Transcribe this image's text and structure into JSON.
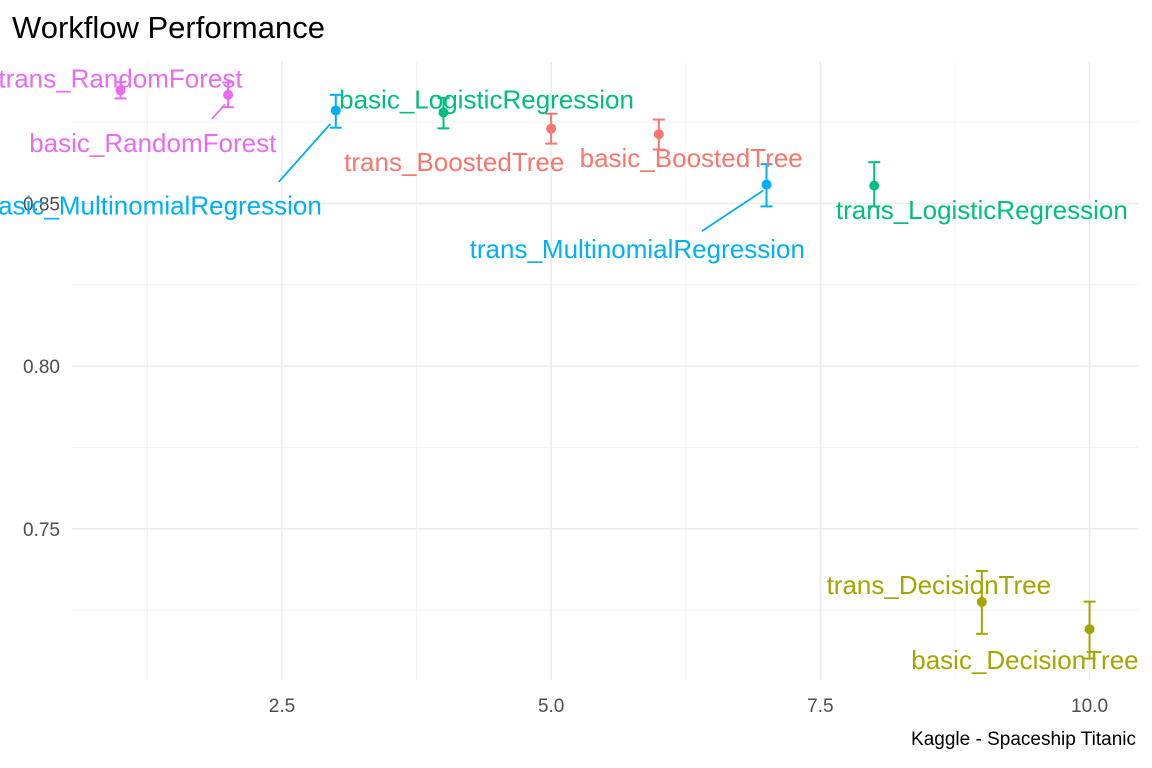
{
  "chart_data": {
    "type": "scatter",
    "title": "Workflow Performance",
    "caption": "Kaggle - Spaceship Titanic",
    "xlabel": "",
    "ylabel": "",
    "xlim": [
      0.55,
      10.45
    ],
    "ylim": [
      0.7035,
      0.8935
    ],
    "x_ticks": [
      {
        "value": 2.5,
        "label": "2.5"
      },
      {
        "value": 5.0,
        "label": "5.0"
      },
      {
        "value": 7.5,
        "label": "7.5"
      },
      {
        "value": 10.0,
        "label": "10.0"
      }
    ],
    "y_ticks": [
      {
        "value": 0.75,
        "label": "0.75"
      },
      {
        "value": 0.8,
        "label": "0.80"
      },
      {
        "value": 0.85,
        "label": "0.85"
      }
    ],
    "x_minor": [
      1.25,
      3.75,
      6.25,
      8.75
    ],
    "y_minor": [
      0.725,
      0.775,
      0.825,
      0.875
    ],
    "grid": true,
    "legend": "none",
    "colors": {
      "RandomForest": "#E76BF3",
      "MultinomialRegression": "#00B0F6",
      "LogisticRegression": "#00BF7D",
      "BoostedTree": "#F8766D",
      "DecisionTree": "#A3A500"
    },
    "points": [
      {
        "label": "trans_RandomForest",
        "model": "RandomForest",
        "x": 1,
        "y": 0.8848,
        "lo": 0.8823,
        "hi": 0.8873,
        "lx": 1.0,
        "ly": 0.8885
      },
      {
        "label": "basic_RandomForest",
        "model": "RandomForest",
        "x": 2,
        "y": 0.8834,
        "lo": 0.8796,
        "hi": 0.8872,
        "lx": 1.3,
        "ly": 0.8686
      },
      {
        "label": "basic_MultinomialRegression",
        "model": "MultinomialRegression",
        "x": 3,
        "y": 0.8786,
        "lo": 0.8733,
        "hi": 0.8834,
        "lx": 1.3,
        "ly": 0.8494
      },
      {
        "label": "basic_LogisticRegression",
        "model": "LogisticRegression",
        "x": 4,
        "y": 0.878,
        "lo": 0.8731,
        "hi": 0.8824,
        "lx": 4.4,
        "ly": 0.882
      },
      {
        "label": "trans_BoostedTree",
        "model": "BoostedTree",
        "x": 5,
        "y": 0.873,
        "lo": 0.8684,
        "hi": 0.8776,
        "lx": 4.1,
        "ly": 0.8627
      },
      {
        "label": "basic_BoostedTree",
        "model": "BoostedTree",
        "x": 6,
        "y": 0.8713,
        "lo": 0.8666,
        "hi": 0.8758,
        "lx": 6.3,
        "ly": 0.864
      },
      {
        "label": "trans_MultinomialRegression",
        "model": "MultinomialRegression",
        "x": 7,
        "y": 0.8558,
        "lo": 0.8491,
        "hi": 0.8621,
        "lx": 5.8,
        "ly": 0.836
      },
      {
        "label": "trans_LogisticRegression",
        "model": "LogisticRegression",
        "x": 8,
        "y": 0.8555,
        "lo": 0.8491,
        "hi": 0.8627,
        "lx": 9.0,
        "ly": 0.848
      },
      {
        "label": "trans_DecisionTree",
        "model": "DecisionTree",
        "x": 9,
        "y": 0.7275,
        "lo": 0.7177,
        "hi": 0.737,
        "lx": 8.6,
        "ly": 0.7327
      },
      {
        "label": "basic_DecisionTree",
        "model": "DecisionTree",
        "x": 10,
        "y": 0.7191,
        "lo": 0.7101,
        "hi": 0.7276,
        "lx": 9.4,
        "ly": 0.7096
      }
    ],
    "segments": [
      {
        "model": "RandomForest",
        "x1": 1.85,
        "y1": 0.876,
        "x2": 1.97,
        "y2": 0.8805
      },
      {
        "model": "MultinomialRegression",
        "x1": 2.47,
        "y1": 0.8566,
        "x2": 2.95,
        "y2": 0.8745
      },
      {
        "model": "MultinomialRegression",
        "x1": 6.4,
        "y1": 0.8415,
        "x2": 6.97,
        "y2": 0.854
      }
    ]
  }
}
